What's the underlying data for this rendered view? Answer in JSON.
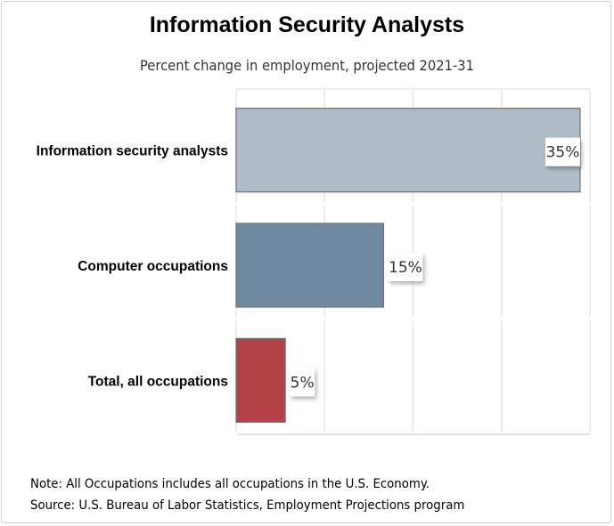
{
  "chart_data": {
    "type": "bar",
    "orientation": "horizontal",
    "title": "Information Security Analysts",
    "subtitle": "Percent change in employment, projected 2021-31",
    "categories": [
      "Information security analysts",
      "Computer occupations",
      "Total, all occupations"
    ],
    "values": [
      35,
      15,
      5
    ],
    "data_labels": [
      "35%",
      "15%",
      "5%"
    ],
    "colors": [
      "#adbcc7",
      "#708aa1",
      "#b24148"
    ],
    "xlim": [
      0,
      36
    ],
    "grid": true,
    "xlabel": "",
    "ylabel": ""
  },
  "notes": {
    "note": "Note: All Occupations includes all occupations in the U.S. Economy.",
    "source": "Source: U.S. Bureau of Labor Statistics, Employment Projections program"
  }
}
